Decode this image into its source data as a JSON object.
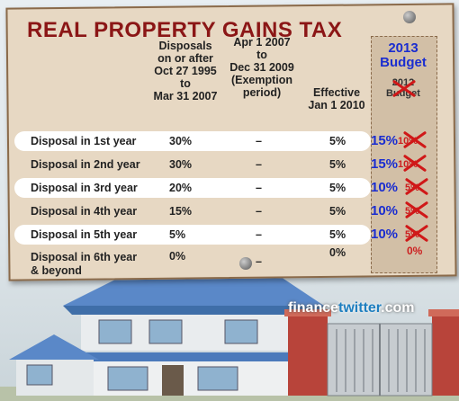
{
  "title": "REAL PROPERTY GAINS TAX",
  "columns": {
    "c1": [
      "Disposals",
      "on or after",
      "Oct 27 1995",
      "to",
      "Mar 31 2007"
    ],
    "c2": [
      "Apr 1 2007",
      "to",
      "Dec 31 2009",
      "(Exemption",
      "period)"
    ],
    "c3": [
      "Effective",
      "Jan 1 2010"
    ],
    "budget_new": [
      "2013",
      "Budget"
    ],
    "budget_old": [
      "2012",
      "Budget"
    ]
  },
  "rows": [
    {
      "label": "Disposal in 1st year",
      "pre2007": "30%",
      "exempt": "–",
      "eff2010": "5%",
      "new": "15%",
      "old": "10%"
    },
    {
      "label": "Disposal in 2nd year",
      "pre2007": "30%",
      "exempt": "–",
      "eff2010": "5%",
      "new": "15%",
      "old": "10%"
    },
    {
      "label": "Disposal in 3rd year",
      "pre2007": "20%",
      "exempt": "–",
      "eff2010": "5%",
      "new": "10%",
      "old": "5%"
    },
    {
      "label": "Disposal in 4th year",
      "pre2007": "15%",
      "exempt": "–",
      "eff2010": "5%",
      "new": "10%",
      "old": "5%"
    },
    {
      "label": "Disposal in 5th year",
      "pre2007": "5%",
      "exempt": "–",
      "eff2010": "5%",
      "new": "10%",
      "old": "5%"
    },
    {
      "label": "Disposal in 6th year",
      "label2": "& beyond",
      "pre2007": "0%",
      "exempt": "–",
      "eff2010": "0%",
      "new": "",
      "old": "0%"
    }
  ],
  "watermark": {
    "a": "finance",
    "b": "twitter",
    "c": ".com"
  },
  "colors": {
    "title": "#8b1616",
    "new_rate": "#1a2dd0",
    "old_rate": "#cc2020",
    "board": "#e7d8c3"
  }
}
